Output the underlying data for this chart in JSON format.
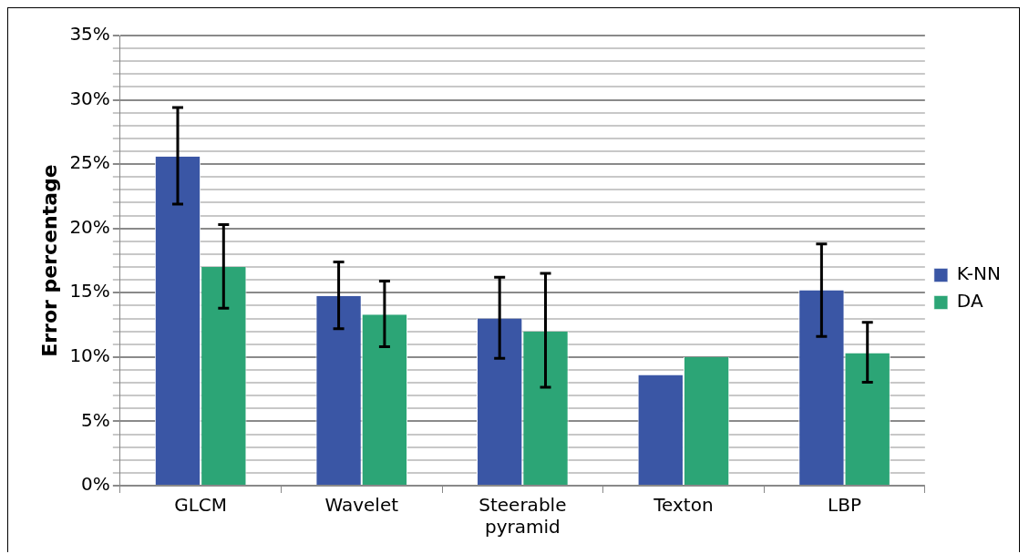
{
  "chart_data": {
    "type": "bar",
    "ylabel": "Error percentage",
    "categories": [
      "GLCM",
      "Wavelet",
      "Steerable pyramid",
      "Texton",
      "LBP"
    ],
    "series": [
      {
        "name": "K-NN",
        "color": "#3a56a5",
        "values": [
          25.6,
          14.75,
          13.0,
          8.6,
          15.2
        ],
        "errors": [
          [
            21.9,
            29.4
          ],
          [
            12.2,
            17.4
          ],
          [
            9.9,
            16.2
          ],
          null,
          [
            11.6,
            18.8
          ]
        ]
      },
      {
        "name": "DA",
        "color": "#2ca576",
        "values": [
          17.0,
          13.3,
          12.0,
          10.0,
          10.3
        ],
        "errors": [
          [
            13.8,
            20.3
          ],
          [
            10.8,
            15.9
          ],
          [
            7.65,
            16.5
          ],
          null,
          [
            8.05,
            12.7
          ]
        ]
      }
    ],
    "ylim": [
      0,
      35
    ],
    "yticks": [
      {
        "value": 0,
        "label": "0%"
      },
      {
        "value": 1,
        "label": null
      },
      {
        "value": 2,
        "label": null
      },
      {
        "value": 3,
        "label": null
      },
      {
        "value": 4,
        "label": null
      },
      {
        "value": 5,
        "label": "5%"
      },
      {
        "value": 6,
        "label": null
      },
      {
        "value": 7,
        "label": null
      },
      {
        "value": 8,
        "label": null
      },
      {
        "value": 9,
        "label": null
      },
      {
        "value": 10,
        "label": "10%"
      },
      {
        "value": 11,
        "label": null
      },
      {
        "value": 12,
        "label": null
      },
      {
        "value": 13,
        "label": null
      },
      {
        "value": 14,
        "label": null
      },
      {
        "value": 15,
        "label": "15%"
      },
      {
        "value": 16,
        "label": null
      },
      {
        "value": 17,
        "label": null
      },
      {
        "value": 18,
        "label": null
      },
      {
        "value": 19,
        "label": null
      },
      {
        "value": 20,
        "label": "20%"
      },
      {
        "value": 21,
        "label": null
      },
      {
        "value": 22,
        "label": null
      },
      {
        "value": 23,
        "label": null
      },
      {
        "value": 24,
        "label": null
      },
      {
        "value": 25,
        "label": "25%"
      },
      {
        "value": 26,
        "label": null
      },
      {
        "value": 27,
        "label": null
      },
      {
        "value": 28,
        "label": null
      },
      {
        "value": 29,
        "label": null
      },
      {
        "value": 30,
        "label": "30%"
      },
      {
        "value": 31,
        "label": null
      },
      {
        "value": 32,
        "label": null
      },
      {
        "value": 33,
        "label": null
      },
      {
        "value": 34,
        "label": null
      },
      {
        "value": 35,
        "label": "35%"
      }
    ],
    "grid": "y",
    "legend": "right"
  }
}
